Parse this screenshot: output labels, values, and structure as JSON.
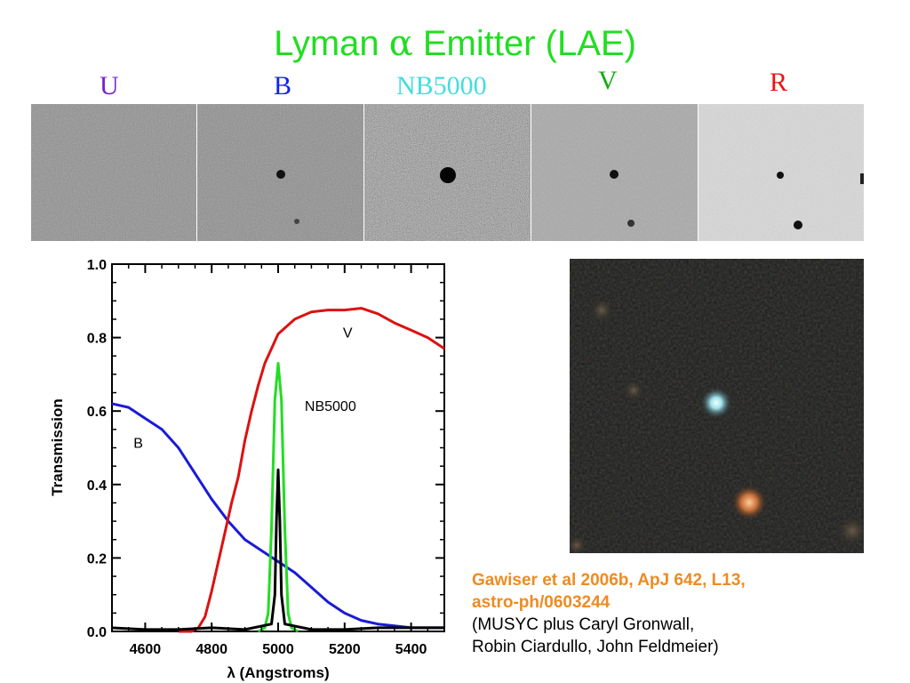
{
  "slide": {
    "title_prefix": "Lyman ",
    "title_symbol": "α",
    "title_suffix": " Emitter (LAE)",
    "title_color": "#22dd22"
  },
  "bands": [
    {
      "label": "U",
      "color": "#7722cc"
    },
    {
      "label": "B",
      "color": "#1122ee"
    },
    {
      "label": "NB5000",
      "color": "#44dddd"
    },
    {
      "label": "V",
      "color": "#11aa11"
    },
    {
      "label": "R",
      "color": "#ee1111"
    }
  ],
  "citation": {
    "line1": "Gawiser et al 2006b, ApJ 642, L13,",
    "line2": "astro-ph/0603244",
    "line3": "(MUSYC plus Caryl Gronwall,",
    "line4": "Robin Ciardullo, John Feldmeier)",
    "ref_color": "#ee8b22"
  },
  "chart_data": {
    "type": "line",
    "xlabel": "λ (Angstroms)",
    "ylabel": "Transmission",
    "xlim": [
      4500,
      5500
    ],
    "ylim": [
      0.0,
      1.0
    ],
    "xticks": [
      4600,
      4800,
      5000,
      5200,
      5400
    ],
    "yticks": [
      0.0,
      0.2,
      0.4,
      0.6,
      0.8,
      1.0
    ],
    "ytick_labels": [
      "0.0",
      "0.2",
      "0.4",
      "0.6",
      "0.8",
      "1.0"
    ],
    "grid": false,
    "series": [
      {
        "name": "B",
        "color": "#1a1ad6",
        "x": [
          4500,
          4550,
          4600,
          4650,
          4700,
          4750,
          4800,
          4850,
          4900,
          4950,
          5000,
          5050,
          5100,
          5150,
          5200,
          5250,
          5300,
          5350,
          5400,
          5450,
          5500
        ],
        "y": [
          0.62,
          0.61,
          0.58,
          0.55,
          0.5,
          0.43,
          0.36,
          0.3,
          0.25,
          0.22,
          0.19,
          0.16,
          0.12,
          0.08,
          0.05,
          0.03,
          0.02,
          0.015,
          0.01,
          0.01,
          0.01
        ]
      },
      {
        "name": "V",
        "color": "#dd1111",
        "x": [
          4700,
          4740,
          4760,
          4780,
          4800,
          4820,
          4840,
          4860,
          4880,
          4900,
          4920,
          4940,
          4960,
          4980,
          5000,
          5050,
          5100,
          5150,
          5200,
          5250,
          5300,
          5350,
          5400,
          5450,
          5500
        ],
        "y": [
          0.0,
          0.0,
          0.01,
          0.04,
          0.11,
          0.19,
          0.27,
          0.35,
          0.42,
          0.52,
          0.6,
          0.67,
          0.73,
          0.77,
          0.81,
          0.85,
          0.87,
          0.875,
          0.875,
          0.88,
          0.865,
          0.84,
          0.82,
          0.8,
          0.77
        ]
      },
      {
        "name": "NB5000",
        "color": "#22dd22",
        "x": [
          4940,
          4960,
          4970,
          4980,
          4990,
          5000,
          5010,
          5020,
          5030,
          5040,
          5060
        ],
        "y": [
          0.0,
          0.01,
          0.05,
          0.28,
          0.63,
          0.73,
          0.63,
          0.28,
          0.05,
          0.01,
          0.0
        ]
      },
      {
        "name": "",
        "color": "#000000",
        "x": [
          4500,
          4600,
          4700,
          4800,
          4900,
          4980,
          4990,
          4995,
          5000,
          5005,
          5010,
          5020,
          5100,
          5200,
          5300,
          5400,
          5500
        ],
        "y": [
          0.01,
          0.005,
          0.005,
          0.01,
          0.005,
          0.02,
          0.1,
          0.3,
          0.44,
          0.3,
          0.1,
          0.02,
          0.005,
          0.005,
          0.01,
          0.01,
          0.01
        ]
      }
    ],
    "annotations": [
      {
        "text": "V",
        "x": 5195,
        "y": 0.8
      },
      {
        "text": "NB5000",
        "x": 5080,
        "y": 0.6
      },
      {
        "text": "B",
        "x": 4565,
        "y": 0.5
      }
    ]
  }
}
